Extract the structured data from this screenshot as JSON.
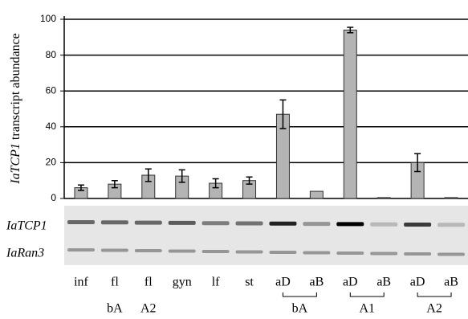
{
  "chart_data": {
    "type": "bar",
    "y_label_gene": "IaTCP1",
    "y_label_rest": "transcript abundance",
    "categories": [
      "inf",
      "fl",
      "fl",
      "gyn",
      "lf",
      "st",
      "aD",
      "aB",
      "aD",
      "aB",
      "aD",
      "aB"
    ],
    "values": [
      6,
      8,
      13,
      12.5,
      8.5,
      10,
      47,
      4,
      94,
      0.5,
      20,
      0.5
    ],
    "errors": [
      1.5,
      2,
      3.5,
      3.5,
      2.5,
      2,
      8,
      0,
      1.5,
      0,
      5,
      0
    ],
    "color": "#b4b4b4",
    "ylim": [
      0,
      100
    ],
    "yticks": [
      0,
      20,
      40,
      60,
      80,
      100
    ],
    "grid": true,
    "sublabels": [
      "bA",
      "A2"
    ],
    "bracket_groups": [
      "bA",
      "A1",
      "A2"
    ],
    "gel_rows": [
      "IaTCP1",
      "IaRan3"
    ]
  }
}
